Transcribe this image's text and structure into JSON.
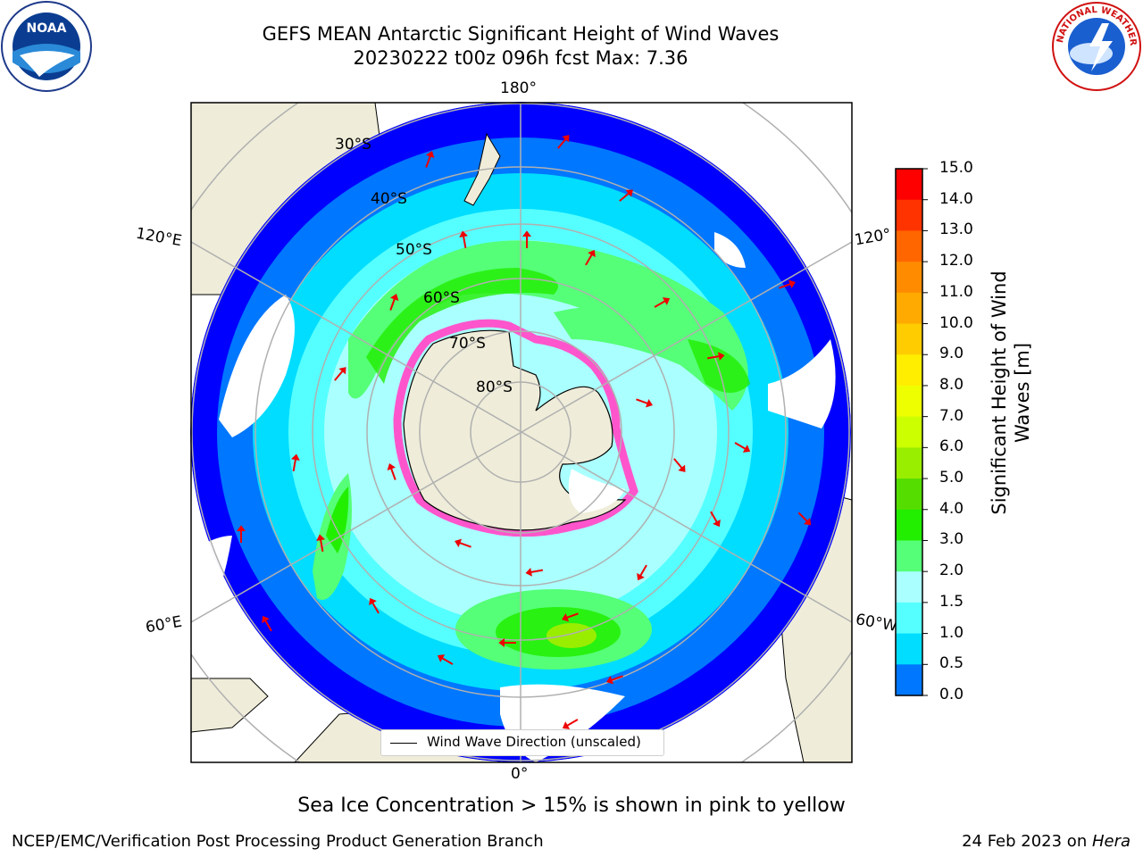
{
  "title": {
    "line1": "GEFS MEAN Antarctic Significant Height of Wind Waves",
    "line2": "20230222 t00z 096h fcst   Max: 7.36"
  },
  "map_labels": {
    "lon_top": "180°",
    "lon_bottom": "0°",
    "lon_left_upper": "120°E",
    "lon_left_lower": "60°E",
    "lon_right_upper": "120°",
    "lon_right_lower": "60°W",
    "lat_30": "30°S",
    "lat_40": "40°S",
    "lat_50": "50°S",
    "lat_60": "60°S",
    "lat_70": "70°S",
    "lat_80": "80°S"
  },
  "legend": {
    "entry": "Wind Wave Direction (unscaled)"
  },
  "colorbar": {
    "label_line1": "Significant Height of Wind",
    "label_line2": "Waves [m]",
    "ticks": [
      "15.0",
      "14.0",
      "13.0",
      "12.0",
      "11.0",
      "10.0",
      "9.0",
      "8.0",
      "7.0",
      "6.0",
      "5.0",
      "4.0",
      "3.0",
      "2.0",
      "1.5",
      "1.0",
      "0.5",
      "0.0"
    ],
    "colors": [
      "#ff0000",
      "#ff3300",
      "#ff6600",
      "#ff8c00",
      "#ffaa00",
      "#ffcc00",
      "#ffee00",
      "#eeff00",
      "#ccff00",
      "#99ee00",
      "#55dd00",
      "#22ee00",
      "#55ff77",
      "#aaffff",
      "#55ffff",
      "#00ddff",
      "#0077ff",
      "#0000ff"
    ]
  },
  "note": "Sea Ice Concentration > 15% is shown in pink to yellow",
  "footer": {
    "left": "NCEP/EMC/Verification Post Processing Product Generation Branch",
    "right_date": "24 Feb 2023 on ",
    "right_system": "Hera"
  },
  "logos": {
    "noaa_text": "NOAA",
    "nws_text": "NATIONAL WEATHER SERVICE"
  },
  "field_colors": {
    "land": "#efedd9",
    "deep_blue": "#0000ff",
    "mid_blue": "#0077ff",
    "cyan": "#00ddff",
    "light_cyan": "#55ffff",
    "pale_cyan": "#aaffff",
    "light_green": "#55ff77",
    "green": "#22ee00",
    "ice": "#ff55cc",
    "arrow": "#ee0000"
  }
}
